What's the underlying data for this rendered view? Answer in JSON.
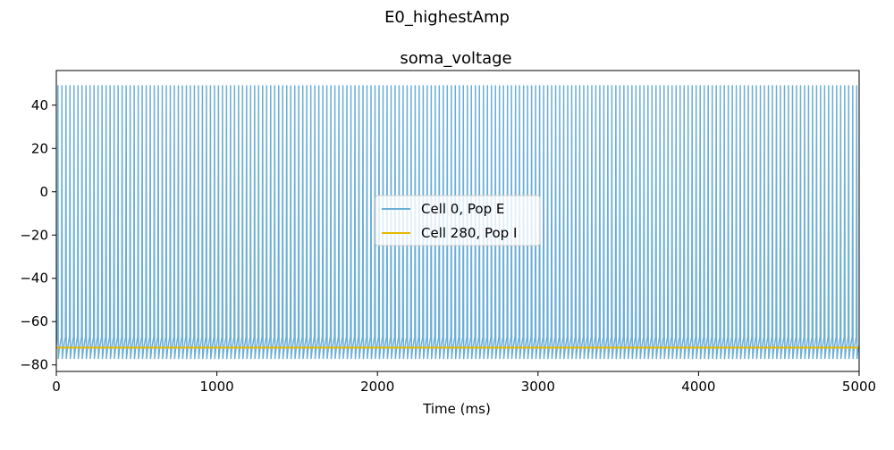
{
  "figure": {
    "suptitle": "E0_highestAmp"
  },
  "chart_data": {
    "type": "line",
    "title": "soma_voltage",
    "xlabel": "Time (ms)",
    "ylabel": "",
    "xlim": [
      0,
      5000
    ],
    "ylim": [
      -83,
      56
    ],
    "xticks": [
      0,
      1000,
      2000,
      3000,
      4000,
      5000
    ],
    "yticks": [
      -80,
      -60,
      -40,
      -20,
      0,
      20,
      40
    ],
    "grid": false,
    "legend_position": "center",
    "series": [
      {
        "name": "Cell 0, Pop E",
        "color": "#6baed6",
        "pattern": "periodic_spikes",
        "spike_count": 200,
        "spike_period_ms": 25,
        "first_spike_ms": 10,
        "peak": 49,
        "trough": -77,
        "rest": -71
      },
      {
        "name": "Cell 280, Pop I",
        "color": "#e6b800",
        "pattern": "flat",
        "value": -72
      }
    ]
  }
}
